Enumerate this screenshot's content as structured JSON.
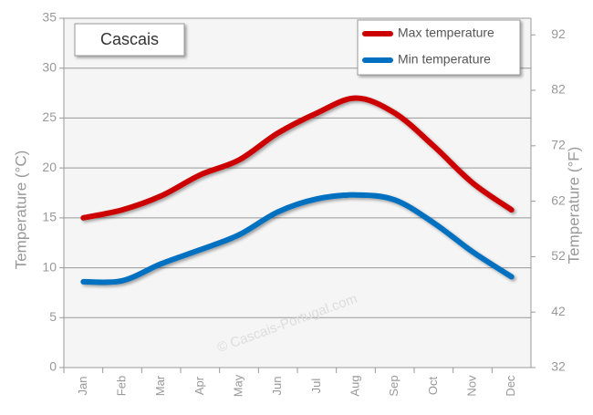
{
  "chart_data": {
    "type": "line",
    "title": "Cascais",
    "watermark": "© Cascais-Portugal.com",
    "y_label": "Temperature (°C)",
    "y2_label": "Temperature (°F)",
    "categories": [
      "Jan",
      "Feb",
      "Mar",
      "Apr",
      "May",
      "Jun",
      "Jul",
      "Aug",
      "Sep",
      "Oct",
      "Nov",
      "Dec"
    ],
    "series": [
      {
        "name": "Max temperature",
        "color": "#cc0000",
        "values": [
          15,
          15.8,
          17.2,
          19.3,
          20.8,
          23.5,
          25.5,
          27,
          25.5,
          22.2,
          18.5,
          15.8
        ]
      },
      {
        "name": "Min temperature",
        "color": "#0070c0",
        "values": [
          8.6,
          8.7,
          10.4,
          11.8,
          13.3,
          15.6,
          16.9,
          17.3,
          16.8,
          14.5,
          11.6,
          9.1
        ]
      }
    ],
    "ylim": [
      0,
      35
    ],
    "yticks": [
      0,
      5,
      10,
      15,
      20,
      25,
      30,
      35
    ],
    "y2lim": [
      32,
      95
    ],
    "y2ticks": [
      32,
      42,
      52,
      62,
      72,
      82,
      92
    ],
    "grid": true,
    "legend": "top-right"
  }
}
